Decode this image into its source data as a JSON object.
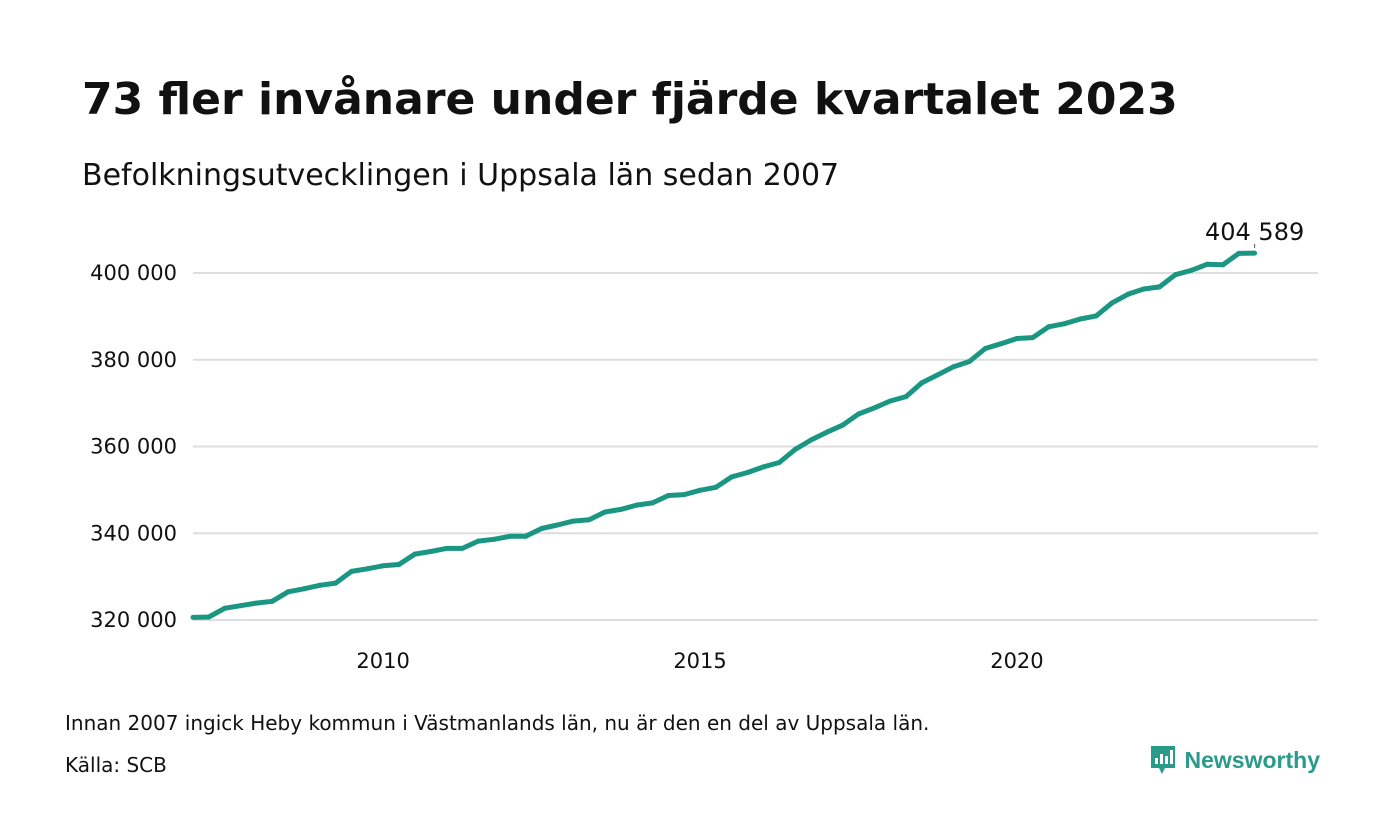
{
  "title": "73 fler invånare under fjärde kvartalet 2023",
  "subtitle": "Befolkningsutvecklingen i Uppsala län sedan 2007",
  "footnote": "Innan 2007 ingick Heby kommun i Västmanlands län, nu är den en del av Uppsala län.",
  "source": "Källa: SCB",
  "brand": {
    "name": "Newsworthy",
    "icon": "newsworthy-logo-icon",
    "color": "#2a9a8b"
  },
  "colors": {
    "line": "#1a9683",
    "grid": "#dedede",
    "text": "#111111"
  },
  "chart_data": {
    "type": "line",
    "title": "73 fler invånare under fjärde kvartalet 2023",
    "subtitle": "Befolkningsutvecklingen i Uppsala län sedan 2007",
    "xlabel": "",
    "ylabel": "",
    "x_type": "quarter",
    "xlim": [
      2007.0,
      2024.75
    ],
    "ylim": [
      318000,
      404000
    ],
    "x_ticks": [
      2010,
      2015,
      2020
    ],
    "x_tick_labels": [
      "2010",
      "2015",
      "2020"
    ],
    "y_ticks": [
      320000,
      340000,
      360000,
      380000,
      400000
    ],
    "y_tick_labels": [
      "320 000",
      "340 000",
      "360 000",
      "380 000",
      "400 000"
    ],
    "grid": true,
    "legend": "none",
    "end_label": "404 589",
    "series": [
      {
        "color": "#1a9683",
        "x": [
          "2007K1",
          "2007K2",
          "2007K3",
          "2007K4",
          "2008K1",
          "2008K2",
          "2008K3",
          "2008K4",
          "2009K1",
          "2009K2",
          "2009K3",
          "2009K4",
          "2010K1",
          "2010K2",
          "2010K3",
          "2010K4",
          "2011K1",
          "2011K2",
          "2011K3",
          "2011K4",
          "2012K1",
          "2012K2",
          "2012K3",
          "2012K4",
          "2013K1",
          "2013K2",
          "2013K3",
          "2013K4",
          "2014K1",
          "2014K2",
          "2014K3",
          "2014K4",
          "2015K1",
          "2015K2",
          "2015K3",
          "2015K4",
          "2016K1",
          "2016K2",
          "2016K3",
          "2016K4",
          "2017K1",
          "2017K2",
          "2017K3",
          "2017K4",
          "2018K1",
          "2018K2",
          "2018K3",
          "2018K4",
          "2019K1",
          "2019K2",
          "2019K3",
          "2019K4",
          "2020K1",
          "2020K2",
          "2020K3",
          "2020K4",
          "2021K1",
          "2021K2",
          "2021K3",
          "2021K4",
          "2022K1",
          "2022K2",
          "2022K3",
          "2022K4",
          "2023K1",
          "2023K2",
          "2023K3",
          "2023K4"
        ],
        "values": [
          320600,
          320700,
          322700,
          323300,
          323900,
          324300,
          326500,
          327200,
          328000,
          328500,
          331200,
          331800,
          332500,
          332800,
          335200,
          335800,
          336500,
          336500,
          338200,
          338600,
          339300,
          339300,
          341100,
          341900,
          342800,
          343100,
          344900,
          345500,
          346500,
          347000,
          348700,
          348900,
          349900,
          350600,
          353000,
          354000,
          355300,
          356300,
          359300,
          361500,
          363300,
          364900,
          367500,
          368900,
          370500,
          371500,
          374700,
          376500,
          378400,
          379600,
          382600,
          383700,
          384900,
          385100,
          387600,
          388300,
          389400,
          390100,
          393100,
          395100,
          396300,
          396800,
          399600,
          400600,
          402000,
          401900,
          404516,
          404589
        ]
      }
    ]
  }
}
